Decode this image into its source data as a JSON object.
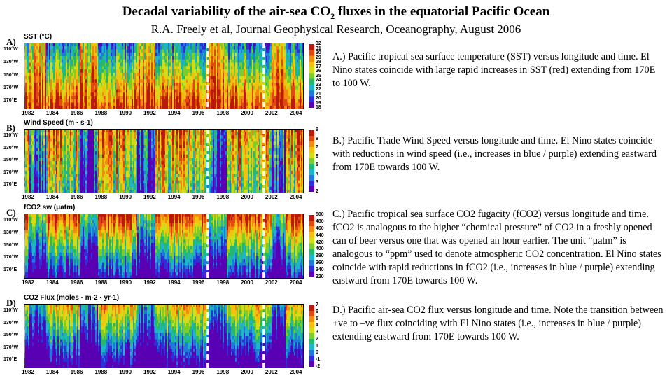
{
  "header": {
    "title_main": "Decadal variability of the air-sea CO",
    "title_sub": "2",
    "title_end": " fluxes in the equatorial Pacific Ocean",
    "subtitle": "R.A. Freely et al, Journal Geophysical Research, Oceanography, August 2006"
  },
  "descriptions": {
    "a": "A.) Pacific tropical sea surface temperature (SST) versus longitude and time. El Nino states coincide with large rapid increases in SST (red) extending from 170E to 100 W.",
    "b": "B.) Pacific Trade Wind Speed versus longitude and time. El Nino states coincide with reductions in wind speed (i.e., increases in blue / purple) extending eastward from 170E towards 100 W.",
    "c": "C.) Pacific tropical sea surface CO2 fugacity (fCO2) versus longitude and time. fCO2 is analogous to the higher “chemical pressure” of CO2 in a freshly opened can of beer versus one that was opened an hour earlier. The unit “μatm” is analogous to “ppm” used to denote atmospheric CO2 concentration. El Nino states coincide with rapid reductions in fCO2 (i.e., increases in blue / purple) extending eastward from 170E towards 100 W.",
    "d": "D.) Pacific air-sea CO2 flux versus longitude and time. Note the transition between +ve to –ve flux coinciding with El Nino states (i.e., increases in blue / purple) extending eastward from 170E towards 100 W."
  },
  "chart_data": [
    {
      "type": "heatmap",
      "panel_label": "A)",
      "title": "SST (°C)",
      "x_ticks": [
        "1982",
        "1984",
        "1986",
        "1988",
        "1990",
        "1992",
        "1994",
        "1996",
        "1998",
        "2000",
        "2002",
        "2004"
      ],
      "y_ticks": [
        "110°W",
        "130°W",
        "150°W",
        "170°W",
        "170°E"
      ],
      "colorbar_ticks": [
        "32",
        "31",
        "30",
        "29",
        "28",
        "27",
        "26",
        "25",
        "24",
        "23",
        "22",
        "21",
        "20",
        "19",
        "18"
      ],
      "vmin": 18,
      "vmax": 32,
      "colors": {
        "accent": "#cc2200"
      }
    },
    {
      "type": "heatmap",
      "panel_label": "B)",
      "title": "Wind Speed (m · s-1)",
      "x_ticks": [
        "1982",
        "1984",
        "1986",
        "1988",
        "1990",
        "1992",
        "1994",
        "1996",
        "1998",
        "2000",
        "2002",
        "2004"
      ],
      "y_ticks": [
        "110°W",
        "130°W",
        "150°W",
        "170°W",
        "170°E"
      ],
      "colorbar_ticks": [
        "9",
        "8",
        "7",
        "6",
        "5",
        "4",
        "3",
        "2"
      ],
      "vmin": 2,
      "vmax": 9
    },
    {
      "type": "heatmap",
      "panel_label": "C)",
      "title": "fCO2 sw (μatm)",
      "x_ticks": [
        "1982",
        "1984",
        "1986",
        "1988",
        "1990",
        "1992",
        "1994",
        "1996",
        "1998",
        "2000",
        "2002",
        "2004"
      ],
      "y_ticks": [
        "110°W",
        "130°W",
        "150°W",
        "170°W",
        "170°E"
      ],
      "colorbar_ticks": [
        "500",
        "480",
        "460",
        "440",
        "420",
        "400",
        "380",
        "360",
        "340",
        "320"
      ],
      "vmin": 320,
      "vmax": 500
    },
    {
      "type": "heatmap",
      "panel_label": "D)",
      "title": "CO2 Flux (moles · m-2 · yr-1)",
      "x_ticks": [
        "1982",
        "1984",
        "1986",
        "1988",
        "1990",
        "1992",
        "1994",
        "1996",
        "1998",
        "2000",
        "2002",
        "2004"
      ],
      "y_ticks": [
        "110°W",
        "130°W",
        "150°W",
        "170°W",
        "170°E"
      ],
      "colorbar_ticks": [
        "7",
        "6",
        "5",
        "4",
        "3",
        "2",
        "1",
        "0",
        "-1",
        "-2"
      ],
      "vmin": -2,
      "vmax": 7
    }
  ]
}
